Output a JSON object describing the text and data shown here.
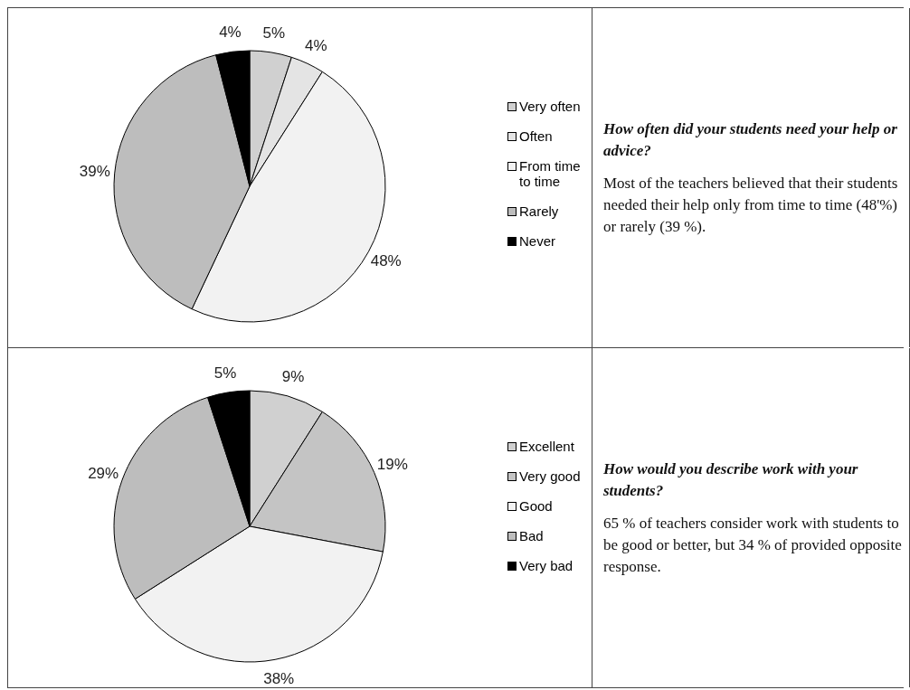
{
  "chart_data": [
    {
      "type": "pie",
      "categories": [
        "Very often",
        "Often",
        "From time to time",
        "Rarely",
        "Never"
      ],
      "values": [
        5,
        4,
        48,
        39,
        4
      ],
      "value_labels": [
        "5%",
        "4%",
        "48%",
        "39%",
        "4%"
      ],
      "colors": [
        "#d0d0d0",
        "#e4e4e4",
        "#f2f2f2",
        "#bdbdbd",
        "#000000"
      ],
      "legend": "right"
    },
    {
      "type": "other",
      "title": "How often did your students need your help or advice?",
      "annotations": [
        "Most of the teachers believed that their students needed their help only from time to time (48'%) or rarely (39 %)."
      ]
    },
    {
      "type": "pie",
      "categories": [
        "Excellent",
        "Very good",
        "Good",
        "Bad",
        "Very bad"
      ],
      "values": [
        9,
        19,
        38,
        29,
        5
      ],
      "value_labels": [
        "9%",
        "19%",
        "38%",
        "29%",
        "5%"
      ],
      "colors": [
        "#d0d0d0",
        "#c4c4c4",
        "#f2f2f2",
        "#bdbdbd",
        "#000000"
      ],
      "legend": "right"
    },
    {
      "type": "other",
      "title": "How would you describe work with your students?",
      "annotations": [
        "65 % of teachers consider work with students to be good or better, but 34 % of provided opposite response."
      ]
    }
  ]
}
